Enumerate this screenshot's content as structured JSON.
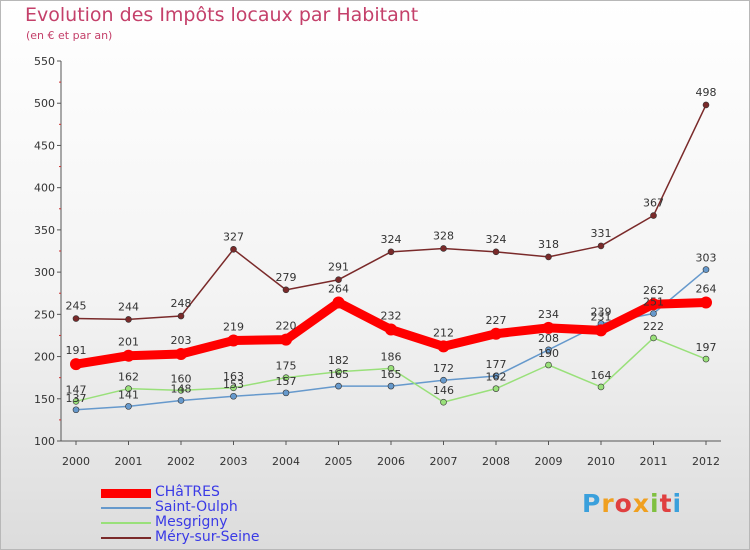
{
  "chart_data": {
    "type": "line",
    "title": "Evolution des Impôts locaux par Habitant",
    "subtitle": "(en € et par an)",
    "xlabel": "",
    "ylabel": "",
    "categories": [
      "2000",
      "2001",
      "2002",
      "2003",
      "2004",
      "2005",
      "2006",
      "2007",
      "2008",
      "2009",
      "2010",
      "2011",
      "2012"
    ],
    "yticks": [
      "100",
      "150",
      "200",
      "250",
      "300",
      "350",
      "400",
      "450",
      "500",
      "550"
    ],
    "ylim": [
      100,
      550
    ],
    "grid": false,
    "legend_position": "bottom-left",
    "series": [
      {
        "name": "CHâTRES",
        "color": "#ff0000",
        "values": [
          191,
          201,
          203,
          219,
          220,
          264,
          232,
          212,
          227,
          234,
          231,
          262,
          264
        ],
        "labels": [
          "191",
          "201",
          "203",
          "219",
          "220",
          "264",
          "232",
          "212",
          "227",
          "234",
          "231",
          "262",
          "264"
        ]
      },
      {
        "name": "Saint-Oulph",
        "color": "#6699cc",
        "values": [
          137,
          141,
          148,
          153,
          157,
          165,
          165,
          172,
          177,
          208,
          239,
          251,
          303
        ],
        "labels": [
          "137",
          "141",
          "148",
          "153",
          "157",
          "165",
          "165",
          "172",
          "177",
          "208",
          "239",
          "251",
          "303"
        ]
      },
      {
        "name": "Mesgrigny",
        "color": "#99e07a",
        "values": [
          147,
          162,
          160,
          163,
          175,
          182,
          186,
          146,
          162,
          190,
          164,
          222,
          197
        ],
        "labels": [
          "147",
          "162",
          "160",
          "163",
          "175",
          "182",
          "186",
          "146",
          "162",
          "190",
          "164",
          "222",
          "197"
        ]
      },
      {
        "name": "Méry-sur-Seine",
        "color": "#7a2a2a",
        "values": [
          245,
          244,
          248,
          327,
          279,
          291,
          324,
          328,
          324,
          318,
          331,
          367,
          498
        ],
        "labels": [
          "245",
          "244",
          "248",
          "327",
          "279",
          "291",
          "324",
          "328",
          "324",
          "318",
          "331",
          "367",
          "498"
        ]
      }
    ]
  },
  "logo": {
    "letters": [
      "P",
      "r",
      "o",
      "x",
      "i",
      "t",
      "i"
    ],
    "colors": [
      "#3aa0dc",
      "#f0a020",
      "#e04040",
      "#f0a020",
      "#80c040",
      "#e04040",
      "#3aa0dc"
    ]
  }
}
